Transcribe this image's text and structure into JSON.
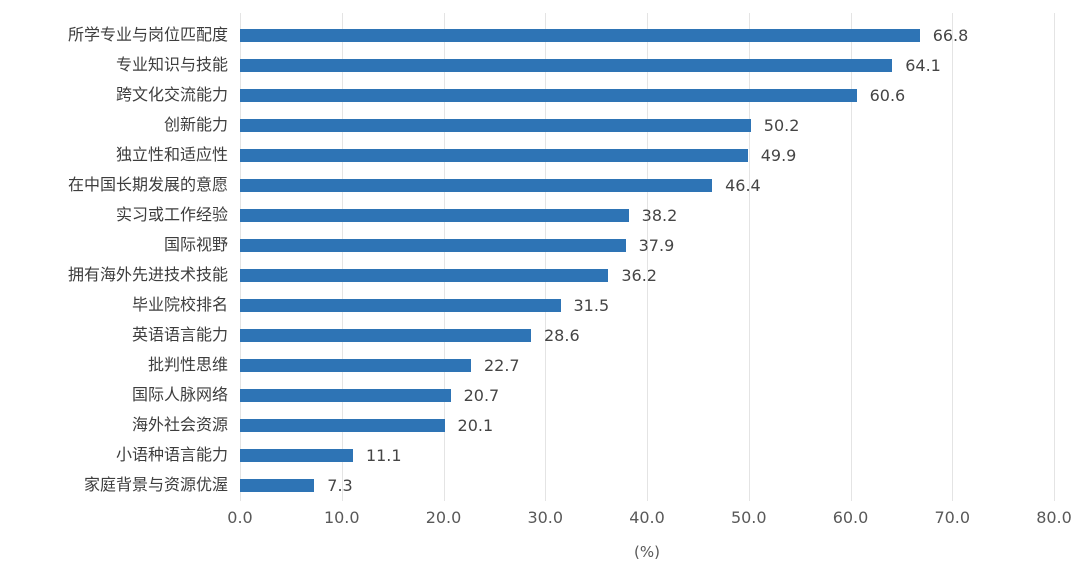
{
  "chart_data": {
    "type": "bar",
    "orientation": "horizontal",
    "title": "",
    "xlabel": "(%)",
    "ylabel": "",
    "xlim": [
      0,
      80
    ],
    "xticks": [
      "0.0",
      "10.0",
      "20.0",
      "30.0",
      "40.0",
      "50.0",
      "60.0",
      "70.0",
      "80.0"
    ],
    "grid": "vertical",
    "legend": "none",
    "value_labels_shown": true,
    "categories": [
      "所学专业与岗位匹配度",
      "专业知识与技能",
      "跨文化交流能力",
      "创新能力",
      "独立性和适应性",
      "在中国长期发展的意愿",
      "实习或工作经验",
      "国际视野",
      "拥有海外先进技术技能",
      "毕业院校排名",
      "英语语言能力",
      "批判性思维",
      "国际人脉网络",
      "海外社会资源",
      "小语种语言能力",
      "家庭背景与资源优渥"
    ],
    "values": [
      66.8,
      64.1,
      60.6,
      50.2,
      49.9,
      46.4,
      38.2,
      37.9,
      36.2,
      31.5,
      28.6,
      22.7,
      20.7,
      20.1,
      11.1,
      7.3
    ]
  },
  "colors": {
    "bar": "#2E74B5",
    "gridline": "#E4E4E4",
    "category_text": "#3D3D3D",
    "value_text": "#454545",
    "tick_text": "#595959",
    "background": "#FFFFFF"
  }
}
